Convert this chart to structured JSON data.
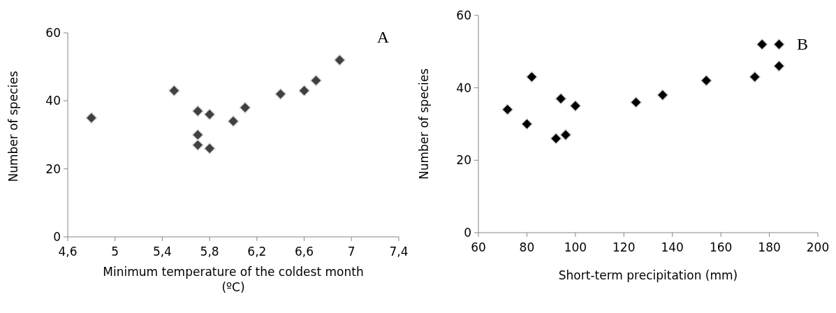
{
  "chart_data": [
    {
      "type": "scatter",
      "xlabel": "Minimum temperature of the coldest month (ºC)",
      "ylabel": "Number of species",
      "annotations": [
        "A"
      ],
      "marker": "diamond",
      "grid": false,
      "xlim": [
        4.6,
        7.4
      ],
      "xticks": [
        {
          "value": 4.6,
          "label": "4,6"
        },
        5,
        {
          "value": 5.4,
          "label": "5,4"
        },
        {
          "value": 5.8,
          "label": "5,8"
        },
        {
          "value": 6.2,
          "label": "6,2"
        },
        {
          "value": 6.6,
          "label": "6,6"
        },
        7,
        {
          "value": 7.4,
          "label": "7,4"
        }
      ],
      "ylim": [
        0,
        60
      ],
      "yticks": [
        0,
        20,
        40,
        60
      ],
      "series": [
        {
          "color": "#404040",
          "x": [
            4.8,
            5.5,
            5.7,
            5.7,
            5.7,
            5.8,
            5.8,
            6.0,
            6.1,
            6.4,
            6.6,
            6.7,
            6.9
          ],
          "values": [
            35,
            43,
            37,
            30,
            27,
            36,
            26,
            34,
            38,
            42,
            43,
            46,
            52
          ]
        }
      ]
    },
    {
      "type": "scatter",
      "xlabel": "Short-term precipitation (mm)",
      "ylabel": "Number of species",
      "annotations": [
        "B"
      ],
      "marker": "diamond",
      "grid": false,
      "xlim": [
        60,
        200
      ],
      "xticks": [
        60,
        80,
        100,
        120,
        140,
        160,
        180,
        200
      ],
      "ylim": [
        0,
        60
      ],
      "yticks": [
        0,
        20,
        40,
        60
      ],
      "series": [
        {
          "color": "#000000",
          "x": [
            72,
            80,
            82,
            92,
            94,
            96,
            100,
            125,
            136,
            154,
            174,
            177,
            184,
            184
          ],
          "values": [
            34,
            30,
            43,
            26,
            37,
            27,
            35,
            36,
            38,
            42,
            43,
            52,
            52,
            46
          ]
        }
      ]
    }
  ]
}
